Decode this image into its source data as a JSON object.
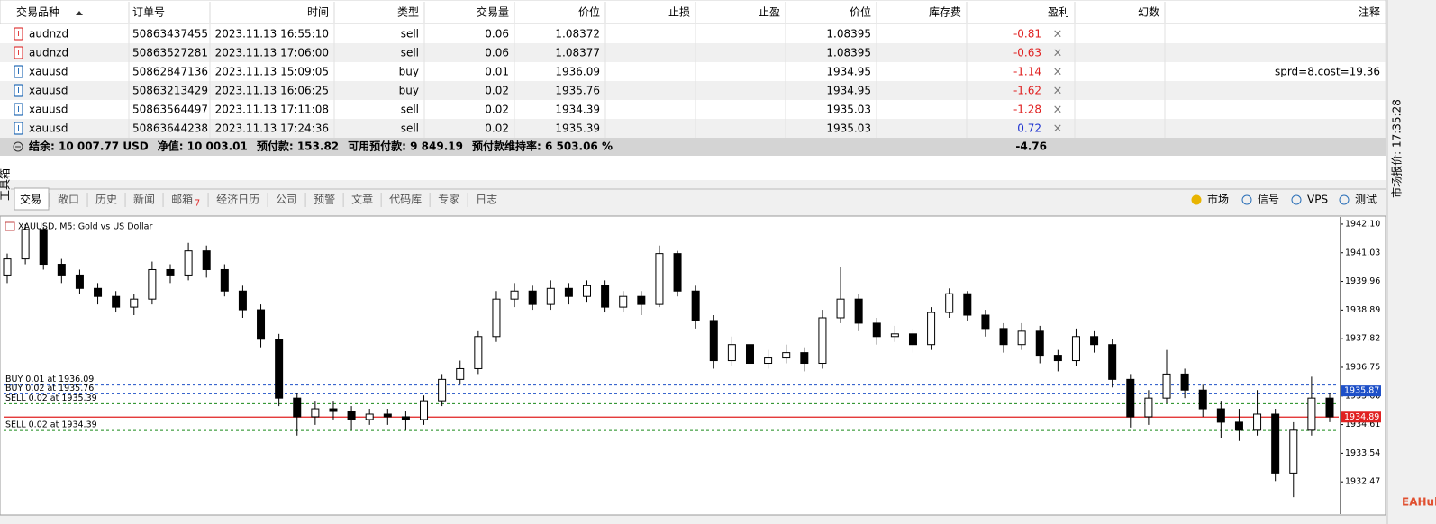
{
  "table": {
    "headers": [
      "交易品种",
      "订单号",
      "时间",
      "类型",
      "交易量",
      "价位",
      "止损",
      "止盈",
      "价位",
      "库存费",
      "盈利",
      "幻数",
      "注释"
    ],
    "rows": [
      {
        "icon_color": "#e04040",
        "symbol": "audnzd",
        "order": 50863437455,
        "time": "2023.11.13 16:55:10",
        "type": "sell",
        "volume": 0.06,
        "open_price": 1.08372,
        "current_price": 1.08395,
        "profit": -0.81
      },
      {
        "icon_color": "#e04040",
        "symbol": "audnzd",
        "order": 50863527281,
        "time": "2023.11.13 17:06:00",
        "type": "sell",
        "volume": 0.06,
        "open_price": 1.08377,
        "current_price": 1.08395,
        "profit": -0.63
      },
      {
        "icon_color": "#2a6fb8",
        "symbol": "xauusd",
        "order": 50862847136,
        "time": "2023.11.13 15:09:05",
        "type": "buy",
        "volume": 0.01,
        "open_price": 1936.09,
        "current_price": 1934.95,
        "profit": -1.14,
        "comment": "sprd=8.cost=19.36"
      },
      {
        "icon_color": "#2a6fb8",
        "symbol": "xauusd",
        "order": 50863213429,
        "time": "2023.11.13 16:06:25",
        "type": "buy",
        "volume": 0.02,
        "open_price": 1935.76,
        "current_price": 1934.95,
        "profit": -1.62
      },
      {
        "icon_color": "#2a6fb8",
        "symbol": "xauusd",
        "order": 50863564497,
        "time": "2023.11.13 17:11:08",
        "type": "sell",
        "volume": 0.02,
        "open_price": 1934.39,
        "current_price": 1935.03,
        "profit": -1.28
      },
      {
        "icon_color": "#2a6fb8",
        "symbol": "xauusd",
        "order": 50863644238,
        "time": "2023.11.13 17:24:36",
        "type": "sell",
        "volume": 0.02,
        "open_price": 1935.39,
        "current_price": 1935.03,
        "profit": 0.72
      }
    ],
    "summary": [
      "结余: 10 007.77 USD",
      "净值: 10 003.01",
      "预付款: 153.82",
      "可用预付款: 9 849.19",
      "预付款维持率: 6 503.06 %"
    ],
    "summary_total": -4.76
  },
  "tabs": [
    {
      "label": "交易"
    },
    {
      "label": "敞口"
    },
    {
      "label": "历史"
    },
    {
      "label": "新闻"
    },
    {
      "label": "邮箱",
      "badge": 7
    },
    {
      "label": "经济日历"
    },
    {
      "label": "公司"
    },
    {
      "label": "预警"
    },
    {
      "label": "文章"
    },
    {
      "label": "代码库"
    },
    {
      "label": "专家"
    },
    {
      "label": "日志"
    }
  ],
  "right_tabs": [
    "市场",
    "信号",
    "VPS",
    "测试"
  ],
  "toolbox": "工具箱",
  "side_panel": "市场报价: 17:35:28",
  "watermark": "EAHub",
  "chart_data": {
    "type": "candlestick",
    "title": "XAUUSD, M5:  Gold vs US Dollar",
    "ylim": [
      1931.4,
      1942.3
    ],
    "yticks": [
      {
        "value": 1942.1,
        "label": "1942.10"
      },
      {
        "value": 1941.03,
        "label": "1941.03"
      },
      {
        "value": 1939.96,
        "label": "1939.96"
      },
      {
        "value": 1938.89,
        "label": "1938.89"
      },
      {
        "value": 1937.82,
        "label": "1937.82"
      },
      {
        "value": 1936.75,
        "label": "1936.75"
      },
      {
        "value": 1935.68,
        "label": "1935.68"
      },
      {
        "value": 1934.61,
        "label": "1934.61"
      },
      {
        "value": 1933.54,
        "label": "1933.54"
      },
      {
        "value": 1932.47,
        "label": "1932.47"
      }
    ],
    "open": [
      1940.2,
      1940.8,
      1941.9,
      1940.6,
      1940.2,
      1939.7,
      1939.4,
      1939.0,
      1939.3,
      1940.4,
      1940.2,
      1941.1,
      1940.4,
      1939.6,
      1938.9,
      1937.8,
      1935.6,
      1934.9,
      1935.2,
      1935.1,
      1934.8,
      1935.0,
      1934.9,
      1934.8,
      1935.5,
      1936.3,
      1936.7,
      1937.9,
      1939.3,
      1939.6,
      1939.1,
      1939.7,
      1939.4,
      1939.8,
      1939.0,
      1939.4,
      1939.1,
      1941.0,
      1939.6,
      1938.5,
      1937.0,
      1937.6,
      1936.9,
      1937.1,
      1937.3,
      1936.9,
      1938.6,
      1939.3,
      1938.4,
      1937.9,
      1938.0,
      1937.6,
      1938.8,
      1939.5,
      1938.7,
      1938.2,
      1937.6,
      1938.1,
      1937.2,
      1937.0,
      1937.9,
      1937.6,
      1936.3,
      1934.9,
      1935.6,
      1936.5,
      1935.9,
      1935.2,
      1934.7,
      1934.4,
      1935.0,
      1932.8,
      1934.4,
      1935.6
    ],
    "high": [
      1941.0,
      1942.1,
      1942.0,
      1940.8,
      1940.4,
      1939.9,
      1939.6,
      1939.5,
      1940.7,
      1940.6,
      1941.4,
      1941.3,
      1940.6,
      1939.8,
      1939.1,
      1938.0,
      1935.8,
      1935.5,
      1935.5,
      1935.3,
      1935.2,
      1935.2,
      1935.1,
      1935.7,
      1936.5,
      1937.0,
      1938.1,
      1939.6,
      1939.9,
      1939.8,
      1940.0,
      1939.9,
      1940.0,
      1940.0,
      1939.6,
      1939.6,
      1941.3,
      1941.1,
      1939.8,
      1938.7,
      1937.9,
      1937.8,
      1937.4,
      1937.6,
      1937.5,
      1938.9,
      1940.5,
      1939.5,
      1938.6,
      1938.3,
      1938.2,
      1939.0,
      1939.7,
      1939.6,
      1938.9,
      1938.4,
      1938.4,
      1938.3,
      1937.4,
      1938.2,
      1938.1,
      1937.8,
      1936.5,
      1935.9,
      1937.4,
      1936.7,
      1936.1,
      1935.5,
      1935.2,
      1935.9,
      1935.2,
      1934.7,
      1936.4,
      1935.8
    ],
    "low": [
      1939.9,
      1940.6,
      1940.4,
      1939.9,
      1939.5,
      1939.1,
      1938.8,
      1938.7,
      1939.1,
      1939.9,
      1940.0,
      1940.1,
      1939.4,
      1938.6,
      1937.5,
      1935.3,
      1934.2,
      1934.6,
      1934.8,
      1934.4,
      1934.6,
      1934.6,
      1934.4,
      1934.6,
      1935.3,
      1936.1,
      1936.5,
      1937.7,
      1939.0,
      1938.9,
      1938.9,
      1939.1,
      1939.2,
      1938.8,
      1938.8,
      1938.7,
      1939.0,
      1939.4,
      1938.2,
      1936.7,
      1936.8,
      1936.5,
      1936.7,
      1936.9,
      1936.6,
      1936.7,
      1938.4,
      1938.1,
      1937.6,
      1937.7,
      1937.3,
      1937.4,
      1938.6,
      1938.5,
      1937.9,
      1937.3,
      1937.4,
      1936.9,
      1936.6,
      1936.8,
      1937.3,
      1936.0,
      1934.5,
      1934.6,
      1935.4,
      1935.6,
      1934.9,
      1934.1,
      1934.0,
      1934.2,
      1932.5,
      1931.9,
      1934.2,
      1934.7
    ],
    "close": [
      1940.8,
      1941.9,
      1940.6,
      1940.2,
      1939.7,
      1939.4,
      1939.0,
      1939.3,
      1940.4,
      1940.2,
      1941.1,
      1940.4,
      1939.6,
      1938.9,
      1937.8,
      1935.6,
      1934.9,
      1935.2,
      1935.1,
      1934.8,
      1935.0,
      1934.9,
      1934.8,
      1935.5,
      1936.3,
      1936.7,
      1937.9,
      1939.3,
      1939.6,
      1939.1,
      1939.7,
      1939.4,
      1939.8,
      1939.0,
      1939.4,
      1939.1,
      1941.0,
      1939.6,
      1938.5,
      1937.0,
      1937.6,
      1936.9,
      1937.1,
      1937.3,
      1936.9,
      1938.6,
      1939.3,
      1938.4,
      1937.9,
      1938.0,
      1937.6,
      1938.8,
      1939.5,
      1938.7,
      1938.2,
      1937.6,
      1938.1,
      1937.2,
      1937.0,
      1937.9,
      1937.6,
      1936.3,
      1934.9,
      1935.6,
      1936.5,
      1935.9,
      1935.2,
      1934.7,
      1934.4,
      1935.0,
      1932.8,
      1934.4,
      1935.6,
      1934.9
    ],
    "up_color": "#ffffff",
    "down_color": "#000000",
    "orders": [
      {
        "label": "BUY 0.01 at 1936.09",
        "price": 1936.09,
        "color": "#1e50c8"
      },
      {
        "label": "BUY 0.02 at 1935.76",
        "price": 1935.76,
        "color": "#1e50c8"
      },
      {
        "label": "SELL 0.02 at 1935.39",
        "price": 1935.39,
        "color": "#1a8a1a"
      },
      {
        "label": "SELL 0.02 at 1934.39",
        "price": 1934.39,
        "color": "#1a8a1a"
      }
    ],
    "ask": 1935.87,
    "ask_color": "#1e50c8",
    "bid": 1934.89,
    "bid_color": "#e02020"
  }
}
